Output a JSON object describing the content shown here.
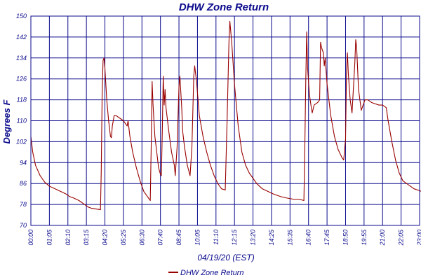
{
  "chart_data": {
    "type": "line",
    "title": "DHW Zone Return",
    "xlabel": "04/19/20 (EST)",
    "ylabel": "Degrees F",
    "ylim": [
      70,
      150
    ],
    "y_ticks": [
      "70",
      "78",
      "86",
      "94",
      "102",
      "110",
      "118",
      "126",
      "134",
      "142",
      "150"
    ],
    "x_ticks": [
      "00:00",
      "01:05",
      "02:10",
      "03:15",
      "04:20",
      "05:25",
      "06:30",
      "07:40",
      "08:45",
      "10:05",
      "11:10",
      "12:15",
      "13:20",
      "14:25",
      "15:35",
      "16:40",
      "17:45",
      "18:50",
      "19:55",
      "21:00",
      "22:05",
      "23:00"
    ],
    "grid": true,
    "legend_position": "bottom",
    "colors": {
      "series": "#990000",
      "grid": "#0a0a8c",
      "text": "#0a0a8c"
    },
    "series": [
      {
        "name": "DHW Zone Return",
        "points": [
          [
            0.0,
            104
          ],
          [
            0.1,
            98
          ],
          [
            0.25,
            93
          ],
          [
            0.5,
            89
          ],
          [
            0.75,
            86.5
          ],
          [
            1.0,
            85
          ],
          [
            1.3,
            84
          ],
          [
            1.6,
            83
          ],
          [
            1.9,
            82
          ],
          [
            2.1,
            81
          ],
          [
            2.3,
            80.5
          ],
          [
            2.6,
            79.5
          ],
          [
            2.9,
            78
          ],
          [
            3.1,
            77
          ],
          [
            3.3,
            76.5
          ],
          [
            3.5,
            76.3
          ],
          [
            3.76,
            76
          ],
          [
            3.8,
            90
          ],
          [
            3.85,
            120
          ],
          [
            3.9,
            133
          ],
          [
            3.95,
            134
          ],
          [
            4.0,
            130
          ],
          [
            4.1,
            118
          ],
          [
            4.2,
            110
          ],
          [
            4.3,
            104
          ],
          [
            4.35,
            103.5
          ],
          [
            4.4,
            108
          ],
          [
            4.5,
            112
          ],
          [
            4.6,
            112
          ],
          [
            4.8,
            111
          ],
          [
            5.0,
            110
          ],
          [
            5.1,
            109
          ],
          [
            5.2,
            108
          ],
          [
            5.25,
            110
          ],
          [
            5.35,
            104
          ],
          [
            5.5,
            98
          ],
          [
            5.7,
            92
          ],
          [
            5.9,
            87
          ],
          [
            6.1,
            83
          ],
          [
            6.3,
            81
          ],
          [
            6.4,
            80
          ],
          [
            6.45,
            79.5
          ],
          [
            6.5,
            100
          ],
          [
            6.55,
            125
          ],
          [
            6.6,
            116
          ],
          [
            6.7,
            104
          ],
          [
            6.8,
            98
          ],
          [
            6.9,
            92
          ],
          [
            7.0,
            89.5
          ],
          [
            7.05,
            89
          ],
          [
            7.1,
            106
          ],
          [
            7.15,
            127
          ],
          [
            7.2,
            116
          ],
          [
            7.25,
            122
          ],
          [
            7.3,
            115
          ],
          [
            7.45,
            106
          ],
          [
            7.6,
            98
          ],
          [
            7.75,
            93
          ],
          [
            7.8,
            89
          ],
          [
            7.9,
            100
          ],
          [
            8.0,
            123
          ],
          [
            8.05,
            127
          ],
          [
            8.15,
            115
          ],
          [
            8.2,
            106
          ],
          [
            8.3,
            100
          ],
          [
            8.45,
            93
          ],
          [
            8.6,
            89
          ],
          [
            8.7,
            100
          ],
          [
            8.8,
            127
          ],
          [
            8.85,
            131
          ],
          [
            8.95,
            125
          ],
          [
            9.1,
            112
          ],
          [
            9.3,
            104
          ],
          [
            9.5,
            98
          ],
          [
            9.7,
            93
          ],
          [
            9.9,
            89
          ],
          [
            10.1,
            86
          ],
          [
            10.3,
            84
          ],
          [
            10.5,
            83.5
          ],
          [
            10.6,
            110
          ],
          [
            10.7,
            140
          ],
          [
            10.75,
            148
          ],
          [
            10.85,
            140
          ],
          [
            11.0,
            124
          ],
          [
            11.2,
            108
          ],
          [
            11.4,
            98
          ],
          [
            11.6,
            93
          ],
          [
            11.8,
            90
          ],
          [
            12.0,
            88
          ],
          [
            12.2,
            86
          ],
          [
            12.5,
            84
          ],
          [
            12.8,
            83
          ],
          [
            13.1,
            82
          ],
          [
            13.5,
            81
          ],
          [
            13.8,
            80.5
          ],
          [
            14.2,
            80
          ],
          [
            14.5,
            80
          ],
          [
            14.75,
            79.5
          ],
          [
            14.8,
            100
          ],
          [
            14.85,
            125
          ],
          [
            14.9,
            144
          ],
          [
            14.95,
            130
          ],
          [
            15.05,
            120
          ],
          [
            15.15,
            115
          ],
          [
            15.2,
            113
          ],
          [
            15.3,
            116
          ],
          [
            15.5,
            117
          ],
          [
            15.6,
            118
          ],
          [
            15.65,
            140
          ],
          [
            15.7,
            138
          ],
          [
            15.8,
            136
          ],
          [
            15.85,
            131
          ],
          [
            15.9,
            134
          ],
          [
            16.0,
            124
          ],
          [
            16.2,
            112
          ],
          [
            16.4,
            104
          ],
          [
            16.6,
            99
          ],
          [
            16.8,
            96
          ],
          [
            16.9,
            95
          ],
          [
            17.0,
            103
          ],
          [
            17.05,
            128
          ],
          [
            17.1,
            136
          ],
          [
            17.15,
            128
          ],
          [
            17.25,
            118
          ],
          [
            17.35,
            113
          ],
          [
            17.5,
            132
          ],
          [
            17.55,
            141
          ],
          [
            17.6,
            138
          ],
          [
            17.7,
            122
          ],
          [
            17.85,
            114
          ],
          [
            17.95,
            116
          ],
          [
            18.05,
            118
          ],
          [
            18.2,
            118
          ],
          [
            18.4,
            117
          ],
          [
            18.6,
            116.5
          ],
          [
            18.8,
            116
          ],
          [
            19.0,
            116
          ],
          [
            19.1,
            115.5
          ],
          [
            19.2,
            115
          ],
          [
            19.3,
            110
          ],
          [
            19.5,
            102
          ],
          [
            19.7,
            95
          ],
          [
            19.9,
            90
          ],
          [
            20.1,
            87
          ],
          [
            20.3,
            86
          ],
          [
            20.5,
            85
          ],
          [
            20.7,
            84
          ],
          [
            20.9,
            83.5
          ],
          [
            21.1,
            83
          ],
          [
            21.3,
            82.5
          ],
          [
            21.5,
            82
          ],
          [
            21.7,
            81.5
          ],
          [
            21.9,
            81
          ],
          [
            22.1,
            80.5
          ],
          [
            22.2,
            80.3
          ]
        ]
      }
    ]
  }
}
